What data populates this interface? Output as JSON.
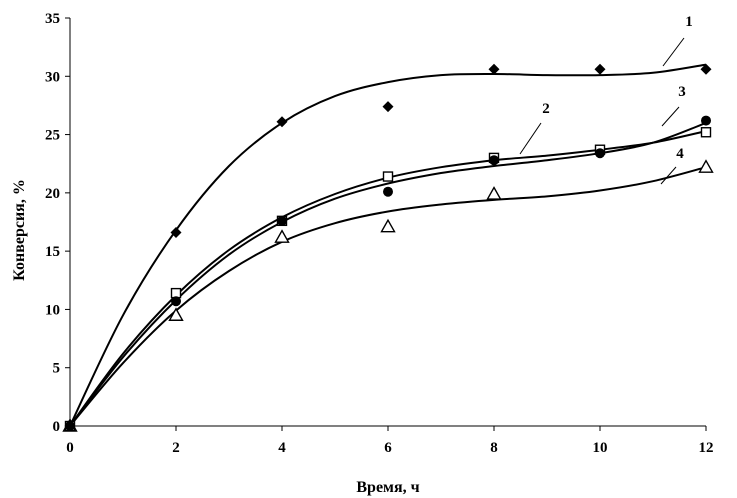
{
  "chart_data": {
    "type": "scatter",
    "xlabel": "Время, ч",
    "ylabel": "Конверсия, %",
    "xlim": [
      0,
      12
    ],
    "ylim": [
      0,
      35
    ],
    "xticks": [
      "0",
      "2",
      "4",
      "6",
      "8",
      "10",
      "12"
    ],
    "yticks": [
      "0",
      "5",
      "10",
      "15",
      "20",
      "25",
      "30",
      "35"
    ],
    "grid": false,
    "series": [
      {
        "label": "1",
        "marker": "filled-diamond",
        "x": [
          0,
          2,
          4,
          6,
          8,
          10,
          12
        ],
        "y": [
          0,
          16.6,
          26.1,
          27.4,
          30.6,
          30.6,
          30.6
        ],
        "fit": [
          [
            0,
            0
          ],
          [
            1,
            9.5
          ],
          [
            2,
            16.8
          ],
          [
            3,
            22.3
          ],
          [
            4,
            26.0
          ],
          [
            5,
            28.3
          ],
          [
            6,
            29.5
          ],
          [
            7,
            30.1
          ],
          [
            8,
            30.2
          ],
          [
            9,
            30.1
          ],
          [
            10,
            30.1
          ],
          [
            11,
            30.3
          ],
          [
            12,
            31.0
          ]
        ]
      },
      {
        "label": "2",
        "marker": "open-square",
        "x": [
          0,
          2,
          4,
          6,
          8,
          10,
          12
        ],
        "y": [
          0,
          11.4,
          17.6,
          21.4,
          23.0,
          23.7,
          25.2
        ],
        "fit": [
          [
            0,
            0
          ],
          [
            1,
            6.2
          ],
          [
            2,
            11.2
          ],
          [
            3,
            15.1
          ],
          [
            4,
            17.9
          ],
          [
            5,
            19.9
          ],
          [
            6,
            21.3
          ],
          [
            7,
            22.2
          ],
          [
            8,
            22.8
          ],
          [
            9,
            23.2
          ],
          [
            10,
            23.7
          ],
          [
            11,
            24.3
          ],
          [
            12,
            25.3
          ]
        ]
      },
      {
        "label": "3",
        "marker": "filled-circle",
        "x": [
          0,
          2,
          4,
          6,
          8,
          10,
          12
        ],
        "y": [
          0,
          10.7,
          17.6,
          20.1,
          22.8,
          23.4,
          26.2
        ],
        "fit": [
          [
            0,
            0
          ],
          [
            1,
            5.9
          ],
          [
            2,
            10.8
          ],
          [
            3,
            14.7
          ],
          [
            4,
            17.5
          ],
          [
            5,
            19.5
          ],
          [
            6,
            20.8
          ],
          [
            7,
            21.7
          ],
          [
            8,
            22.3
          ],
          [
            9,
            22.8
          ],
          [
            10,
            23.4
          ],
          [
            11,
            24.3
          ],
          [
            12,
            26.0
          ]
        ]
      },
      {
        "label": "4",
        "marker": "open-triangle",
        "x": [
          0,
          2,
          4,
          6,
          8,
          10,
          12
        ],
        "y": [
          0,
          9.5,
          16.2,
          17.1,
          19.9,
          null,
          22.2
        ],
        "fit": [
          [
            0,
            0
          ],
          [
            1,
            5.4
          ],
          [
            2,
            9.9
          ],
          [
            3,
            13.3
          ],
          [
            4,
            15.8
          ],
          [
            5,
            17.4
          ],
          [
            6,
            18.4
          ],
          [
            7,
            19.0
          ],
          [
            8,
            19.4
          ],
          [
            9,
            19.7
          ],
          [
            10,
            20.2
          ],
          [
            11,
            21.0
          ],
          [
            12,
            22.2
          ]
        ]
      }
    ]
  }
}
